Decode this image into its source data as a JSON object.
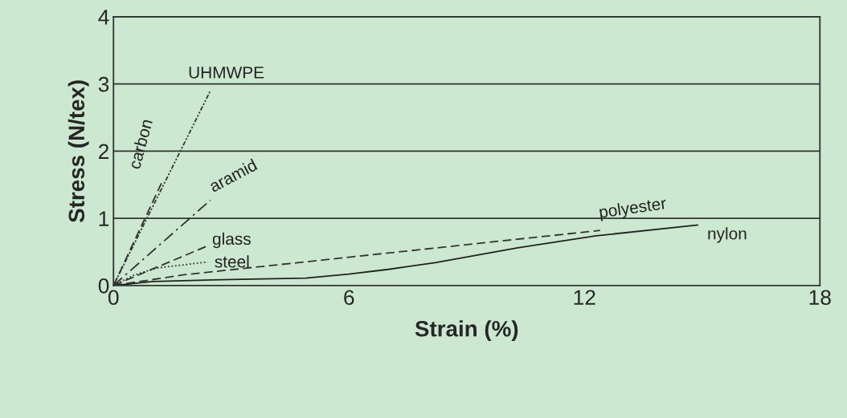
{
  "chart_data": {
    "type": "line",
    "xlabel": "Strain (%)",
    "ylabel": "Stress (N/tex)",
    "xlim": [
      0,
      18
    ],
    "ylim": [
      0,
      4
    ],
    "xticks": [
      0,
      6,
      12,
      18
    ],
    "yticks": [
      0,
      1,
      2,
      3,
      4
    ],
    "grid": "y",
    "marker": "none",
    "series": [
      {
        "name": "UHMWPE",
        "color": "#333333",
        "line_style": "dashdotdot",
        "x": [
          0,
          2.47
        ],
        "values": [
          0,
          2.9
        ]
      },
      {
        "name": "carbon",
        "color": "#333333",
        "line_style": "dashed",
        "x": [
          0,
          1.26
        ],
        "values": [
          0,
          1.57
        ]
      },
      {
        "name": "aramid",
        "color": "#333333",
        "line_style": "dashdot",
        "x": [
          0,
          2.47
        ],
        "values": [
          0,
          1.27
        ]
      },
      {
        "name": "glass",
        "color": "#333333",
        "line_style": "dashed",
        "x": [
          0,
          2.4
        ],
        "values": [
          0,
          0.59
        ]
      },
      {
        "name": "steel",
        "color": "#333333",
        "line_style": "dotted",
        "x": [
          0,
          0.5,
          1.1,
          2.4
        ],
        "values": [
          0,
          0.15,
          0.26,
          0.35
        ]
      },
      {
        "name": "polyester",
        "color": "#333333",
        "line_style": "dashed",
        "x": [
          0,
          1.8,
          4.7,
          12.4
        ],
        "values": [
          0,
          0.16,
          0.34,
          0.82
        ]
      },
      {
        "name": "nylon",
        "color": "#222222",
        "line_style": "solid",
        "x": [
          0,
          1,
          3,
          4.9,
          6,
          7,
          8.2,
          10.3,
          12.3,
          14.9
        ],
        "values": [
          0,
          0.06,
          0.09,
          0.11,
          0.17,
          0.24,
          0.34,
          0.56,
          0.74,
          0.9
        ]
      }
    ]
  }
}
